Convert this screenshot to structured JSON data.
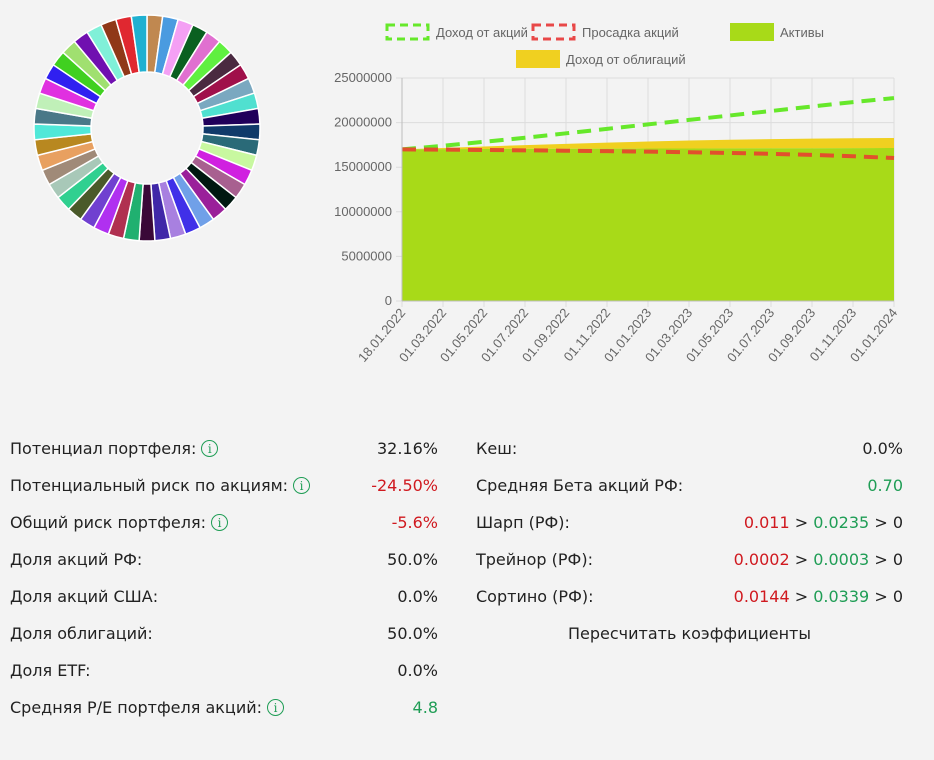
{
  "donut": {
    "colors": [
      "#c08850",
      "#4a9be0",
      "#f4a0f4",
      "#0a6020",
      "#e070d0",
      "#60f040",
      "#4a2a40",
      "#a0104a",
      "#7aa8c0",
      "#50e0d0",
      "#20005a",
      "#103a6a",
      "#2a6a78",
      "#c8f8a0",
      "#d020e0",
      "#a86090",
      "#001810",
      "#9a209a",
      "#70a0e8",
      "#4030e8",
      "#a880e0",
      "#4028a8",
      "#3a0838",
      "#20b070",
      "#b03050",
      "#b030f0",
      "#7040d0",
      "#4a5a2a",
      "#30d090",
      "#a8c8b8",
      "#a08a78",
      "#e8a060",
      "#b88820",
      "#50e8d8",
      "#4a7888",
      "#c0f0b8",
      "#e030e0",
      "#3020f0",
      "#40d020",
      "#a0e070",
      "#7010b0",
      "#80f0d8",
      "#903818",
      "#e02830",
      "#20b0d0"
    ]
  },
  "chart_data": {
    "type": "area",
    "title": "",
    "xlabel": "",
    "ylabel": "",
    "ylim": [
      0,
      25000000
    ],
    "yticks": [
      "0",
      "5000000",
      "10000000",
      "15000000",
      "20000000",
      "25000000"
    ],
    "ytick_values": [
      0,
      5000000,
      10000000,
      15000000,
      20000000,
      25000000
    ],
    "categories": [
      "18.01.2022",
      "01.03.2022",
      "01.05.2022",
      "01.07.2022",
      "01.09.2022",
      "01.11.2022",
      "01.01.2023",
      "01.03.2023",
      "01.05.2023",
      "01.07.2023",
      "01.09.2023",
      "01.11.2023",
      "01.01.2024"
    ],
    "grid": true,
    "legend_position": "top",
    "series": [
      {
        "name": "Доход от акций",
        "kind": "dashed-line",
        "color": "#66e82a",
        "values": [
          17000000,
          17400000,
          17850000,
          18300000,
          18800000,
          19300000,
          19800000,
          20300000,
          20800000,
          21300000,
          21800000,
          22300000,
          22750000
        ]
      },
      {
        "name": "Просадка акций",
        "kind": "dashed-line",
        "color": "#e2502c",
        "legend_color": "#e84848",
        "values": [
          17000000,
          16970000,
          16930000,
          16890000,
          16850000,
          16800000,
          16740000,
          16680000,
          16600000,
          16500000,
          16380000,
          16230000,
          16030000
        ]
      },
      {
        "name": "Активы",
        "kind": "area",
        "color": "#a8da18",
        "values": [
          17000000,
          17020000,
          17040000,
          17060000,
          17070000,
          17080000,
          17090000,
          17100000,
          17110000,
          17120000,
          17130000,
          17140000,
          17150000
        ]
      },
      {
        "name": "Доход от облигаций",
        "kind": "stacked-area",
        "color": "#f0d020",
        "values": [
          17000000,
          17150000,
          17320000,
          17480000,
          17620000,
          17760000,
          17880000,
          17990000,
          18080000,
          18150000,
          18210000,
          18250000,
          18280000
        ]
      }
    ]
  },
  "stats_left": [
    {
      "label": "Потенциал портфеля:",
      "info": true,
      "value": "32.16%",
      "tone": "dark"
    },
    {
      "label": "Потенциальный риск по акциям:",
      "info": true,
      "value": "-24.50%",
      "tone": "red"
    },
    {
      "label": "Общий риск портфеля:",
      "info": true,
      "value": "-5.6%",
      "tone": "red"
    },
    {
      "label": "Доля акций РФ:",
      "info": false,
      "value": "50.0%",
      "tone": "dark"
    },
    {
      "label": "Доля акций США:",
      "info": false,
      "value": "0.0%",
      "tone": "dark"
    },
    {
      "label": "Доля облигаций:",
      "info": false,
      "value": "50.0%",
      "tone": "dark"
    },
    {
      "label": "Доля ETF:",
      "info": false,
      "value": "0.0%",
      "tone": "dark"
    },
    {
      "label": "Средняя P/E портфеля акций:",
      "info": true,
      "value": "4.8",
      "tone": "green"
    }
  ],
  "stats_right": {
    "cash": {
      "label": "Кеш:",
      "value": "0.0%"
    },
    "beta": {
      "label": "Средняя Бета акций РФ:",
      "value": "0.70"
    },
    "sharpe": {
      "label": "Шарп (РФ):",
      "v1": "0.011",
      "sep1": ">",
      "v2": "0.0235",
      "sep2": ">",
      "v3": "0"
    },
    "treynor": {
      "label": "Трейнор (РФ):",
      "v1": "0.0002",
      "sep1": ">",
      "v2": "0.0003",
      "sep2": ">",
      "v3": "0"
    },
    "sortino": {
      "label": "Сортино (РФ):",
      "v1": "0.0144",
      "sep1": ">",
      "v2": "0.0339",
      "sep2": ">",
      "v3": "0"
    },
    "recalc_label": "Пересчитать коэффициенты"
  },
  "info_glyph": "i"
}
